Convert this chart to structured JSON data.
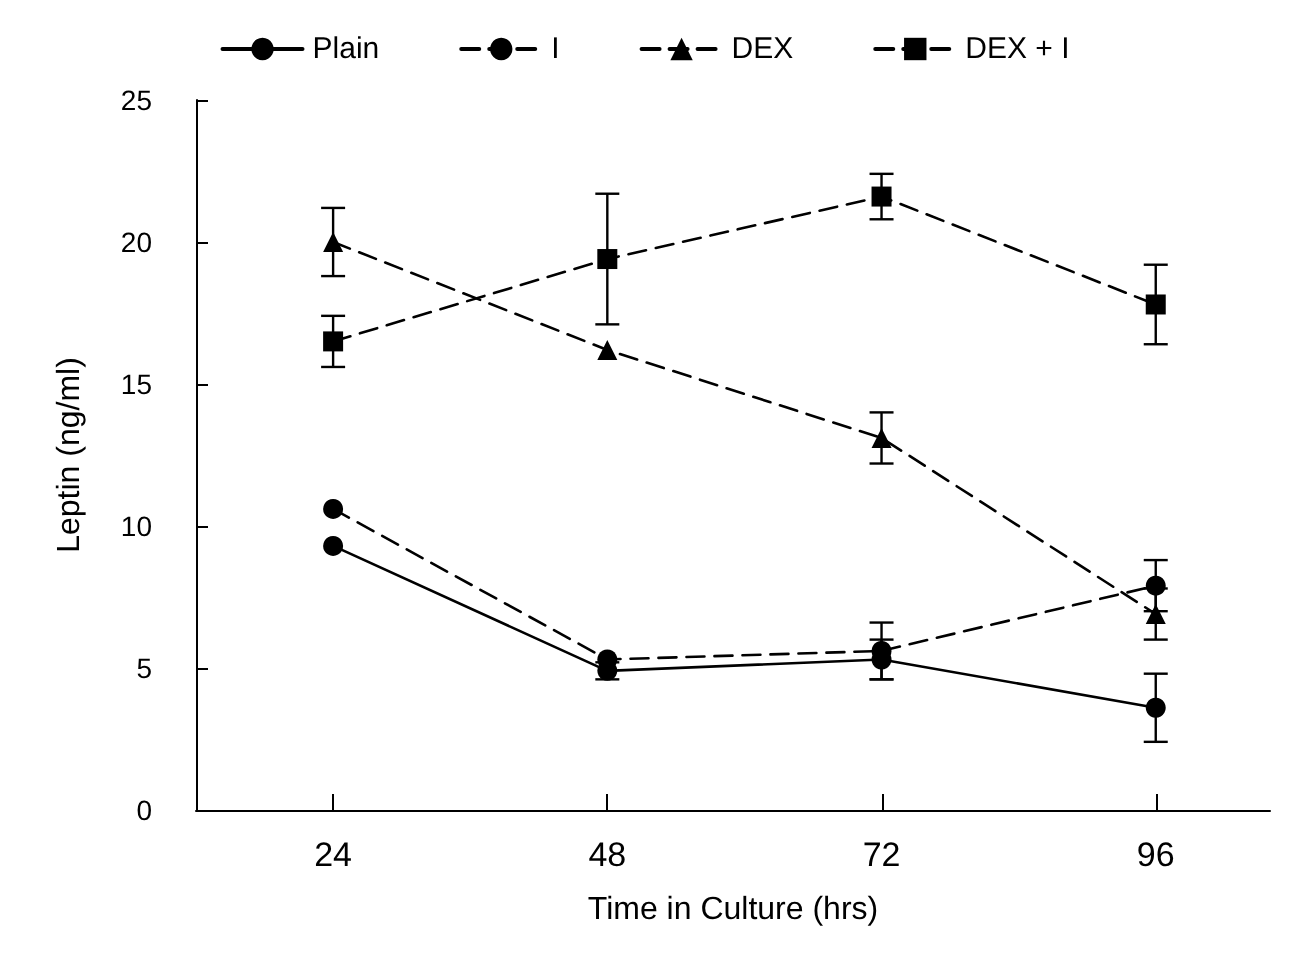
{
  "chart_data": {
    "type": "line",
    "xlabel": "Time in Culture (hrs)",
    "ylabel": "Leptin (ng/ml)",
    "x": [
      24,
      48,
      72,
      96
    ],
    "xlim": [
      12,
      106
    ],
    "xticks": [
      24,
      48,
      72,
      96
    ],
    "ylim": [
      0,
      25
    ],
    "yticks": [
      0,
      5,
      10,
      15,
      20,
      25
    ],
    "grid": false,
    "legend": "top",
    "series": [
      {
        "name": "Plain",
        "color": "#000000",
        "marker": "circle",
        "line_style": "solid",
        "values": [
          9.3,
          4.9,
          5.3,
          3.6
        ],
        "errors": [
          null,
          0.3,
          0.7,
          1.2
        ]
      },
      {
        "name": "I",
        "color": "#000000",
        "marker": "circle",
        "line_style": "dashed",
        "values": [
          10.6,
          5.3,
          5.6,
          7.9
        ],
        "errors": [
          null,
          null,
          1.0,
          0.9
        ]
      },
      {
        "name": "DEX",
        "color": "#000000",
        "marker": "triangle",
        "line_style": "dashed",
        "values": [
          20.0,
          16.2,
          13.1,
          6.9
        ],
        "errors": [
          1.2,
          null,
          0.9,
          0.9
        ]
      },
      {
        "name": "DEX + I",
        "color": "#000000",
        "marker": "square",
        "line_style": "dashed",
        "values": [
          16.5,
          19.4,
          21.6,
          17.8
        ],
        "errors": [
          0.9,
          2.3,
          0.8,
          1.4
        ]
      }
    ]
  }
}
